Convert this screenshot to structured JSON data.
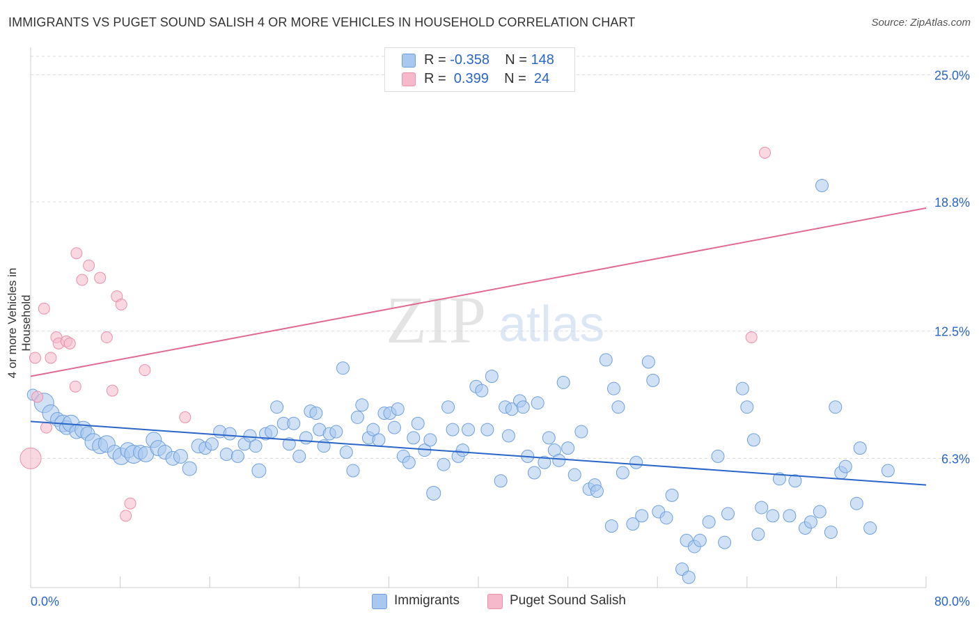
{
  "title": "IMMIGRANTS VS PUGET SOUND SALISH 4 OR MORE VEHICLES IN HOUSEHOLD CORRELATION CHART",
  "source": "Source: ZipAtlas.com",
  "watermark": {
    "zip": "ZIP",
    "atlas": "atlas"
  },
  "legend_top": {
    "rows": [
      {
        "r_label": "R =",
        "r_value": "-0.358",
        "n_label": "N =",
        "n_value": "148",
        "color": "#a9c8ef"
      },
      {
        "r_label": "R =",
        "r_value": " 0.399",
        "n_label": "N =",
        "n_value": " 24",
        "color": "#f6b8cb"
      }
    ]
  },
  "legend_bottom": [
    {
      "label": "Immigrants",
      "color": "#a9c8ef",
      "stroke": "#6f9fdc"
    },
    {
      "label": "Puget Sound Salish",
      "color": "#f6b8cb",
      "stroke": "#e990ab"
    }
  ],
  "chart_data": {
    "type": "scatter",
    "title": "IMMIGRANTS VS PUGET SOUND SALISH 4 OR MORE VEHICLES IN HOUSEHOLD CORRELATION CHART",
    "xlabel": "",
    "ylabel": "4 or more Vehicles in Household",
    "xlim": [
      0,
      80
    ],
    "ylim": [
      0,
      26.2
    ],
    "x_tick_labels": [
      "0.0%",
      "80.0%"
    ],
    "y_ticks": [
      6.3,
      12.5,
      18.8,
      25.0
    ],
    "y_tick_labels": [
      "6.3%",
      "12.5%",
      "18.8%",
      "25.0%"
    ],
    "grid": "horizontal dashed",
    "legend_placement": "top-center and bottom",
    "colors": {
      "blue": "#2a65c8",
      "pink": "#e06a92",
      "blue_fill": "#a9c8ef",
      "pink_fill": "#f6b8cb"
    },
    "series": [
      {
        "name": "Immigrants",
        "trend": {
          "x": [
            0,
            80
          ],
          "y": [
            8.1,
            5.0
          ]
        },
        "points": [
          [
            0.2,
            9.4,
            8
          ],
          [
            1.2,
            9.0,
            14
          ],
          [
            1.8,
            8.5,
            12
          ],
          [
            2.4,
            8.2,
            10
          ],
          [
            2.9,
            8.0,
            12
          ],
          [
            3.2,
            7.8,
            10
          ],
          [
            3.6,
            8.0,
            12
          ],
          [
            4.1,
            7.6,
            10
          ],
          [
            4.7,
            7.7,
            12
          ],
          [
            5.1,
            7.5,
            10
          ],
          [
            5.6,
            7.1,
            12
          ],
          [
            6.2,
            6.9,
            11
          ],
          [
            6.8,
            7.0,
            12
          ],
          [
            7.5,
            6.6,
            10
          ],
          [
            8.1,
            6.4,
            12
          ],
          [
            8.7,
            6.7,
            11
          ],
          [
            9.2,
            6.5,
            13
          ],
          [
            9.8,
            6.6,
            10
          ],
          [
            10.3,
            6.5,
            11
          ],
          [
            11.0,
            7.2,
            11
          ],
          [
            11.4,
            6.8,
            11
          ],
          [
            12.0,
            6.6,
            10
          ],
          [
            12.7,
            6.3,
            10
          ],
          [
            13.4,
            6.4,
            10
          ],
          [
            14.2,
            5.8,
            10
          ],
          [
            15.0,
            6.9,
            10
          ],
          [
            15.6,
            6.8,
            9
          ],
          [
            16.2,
            7.0,
            9
          ],
          [
            16.9,
            7.6,
            9
          ],
          [
            17.5,
            6.5,
            9
          ],
          [
            17.8,
            7.5,
            9
          ],
          [
            18.5,
            6.4,
            9
          ],
          [
            19.1,
            7.0,
            9
          ],
          [
            19.6,
            7.4,
            9
          ],
          [
            20.1,
            6.9,
            9
          ],
          [
            20.4,
            5.7,
            10
          ],
          [
            21.0,
            7.5,
            9
          ],
          [
            21.5,
            7.6,
            9
          ],
          [
            22.0,
            8.8,
            9
          ],
          [
            22.6,
            8.0,
            9
          ],
          [
            23.1,
            7.0,
            9
          ],
          [
            23.5,
            8.0,
            9
          ],
          [
            24.0,
            6.4,
            9
          ],
          [
            24.6,
            7.3,
            9
          ],
          [
            25.0,
            8.6,
            9
          ],
          [
            25.5,
            8.5,
            9
          ],
          [
            25.8,
            7.7,
            9
          ],
          [
            26.2,
            6.9,
            9
          ],
          [
            26.7,
            7.5,
            9
          ],
          [
            27.3,
            7.6,
            9
          ],
          [
            27.9,
            10.7,
            9
          ],
          [
            28.2,
            6.6,
            9
          ],
          [
            28.8,
            5.7,
            9
          ],
          [
            29.2,
            8.3,
            9
          ],
          [
            29.6,
            8.9,
            9
          ],
          [
            30.2,
            7.3,
            9
          ],
          [
            30.6,
            7.7,
            9
          ],
          [
            31.1,
            7.2,
            9
          ],
          [
            31.6,
            8.5,
            9
          ],
          [
            32.1,
            8.5,
            9
          ],
          [
            32.5,
            7.8,
            9
          ],
          [
            32.8,
            8.7,
            9
          ],
          [
            33.3,
            6.4,
            9
          ],
          [
            33.8,
            6.1,
            9
          ],
          [
            34.2,
            7.3,
            9
          ],
          [
            34.6,
            8.0,
            9
          ],
          [
            35.2,
            6.7,
            9
          ],
          [
            35.7,
            7.2,
            9
          ],
          [
            36.0,
            4.6,
            10
          ],
          [
            36.9,
            6.0,
            9
          ],
          [
            37.3,
            8.8,
            9
          ],
          [
            37.7,
            7.7,
            9
          ],
          [
            38.2,
            6.4,
            9
          ],
          [
            38.6,
            6.7,
            9
          ],
          [
            39.1,
            7.7,
            9
          ],
          [
            39.8,
            9.8,
            9
          ],
          [
            40.3,
            9.6,
            9
          ],
          [
            40.8,
            7.7,
            9
          ],
          [
            41.2,
            10.3,
            9
          ],
          [
            42.0,
            5.2,
            9
          ],
          [
            42.4,
            8.8,
            9
          ],
          [
            42.7,
            7.4,
            9
          ],
          [
            43.0,
            8.7,
            9
          ],
          [
            43.7,
            9.1,
            9
          ],
          [
            44.0,
            8.8,
            9
          ],
          [
            44.4,
            6.4,
            9
          ],
          [
            45.0,
            5.6,
            9
          ],
          [
            45.3,
            9.0,
            9
          ],
          [
            45.9,
            6.1,
            9
          ],
          [
            46.3,
            7.3,
            9
          ],
          [
            46.8,
            6.7,
            9
          ],
          [
            47.2,
            6.2,
            9
          ],
          [
            47.6,
            10.0,
            9
          ],
          [
            48.0,
            6.8,
            9
          ],
          [
            48.6,
            5.5,
            9
          ],
          [
            49.2,
            7.6,
            9
          ],
          [
            49.9,
            4.8,
            9
          ],
          [
            50.4,
            5.0,
            9
          ],
          [
            50.6,
            4.7,
            9
          ],
          [
            51.4,
            11.1,
            9
          ],
          [
            51.9,
            3.0,
            9
          ],
          [
            52.1,
            9.7,
            9
          ],
          [
            52.5,
            8.8,
            9
          ],
          [
            52.9,
            5.6,
            9
          ],
          [
            53.8,
            3.1,
            9
          ],
          [
            54.1,
            6.1,
            9
          ],
          [
            54.6,
            3.5,
            9
          ],
          [
            55.2,
            11.0,
            9
          ],
          [
            55.6,
            10.1,
            9
          ],
          [
            56.1,
            3.7,
            9
          ],
          [
            56.8,
            3.4,
            9
          ],
          [
            57.3,
            4.5,
            9
          ],
          [
            58.2,
            0.9,
            9
          ],
          [
            58.6,
            2.3,
            9
          ],
          [
            58.8,
            0.5,
            9
          ],
          [
            59.3,
            2.0,
            9
          ],
          [
            59.8,
            2.3,
            9
          ],
          [
            60.6,
            3.2,
            9
          ],
          [
            61.4,
            6.4,
            9
          ],
          [
            62.0,
            2.2,
            9
          ],
          [
            62.3,
            3.6,
            9
          ],
          [
            63.6,
            9.7,
            9
          ],
          [
            64.0,
            8.8,
            9
          ],
          [
            64.6,
            7.2,
            9
          ],
          [
            65.0,
            2.6,
            9
          ],
          [
            65.3,
            3.9,
            9
          ],
          [
            66.3,
            3.5,
            9
          ],
          [
            66.9,
            5.3,
            9
          ],
          [
            67.8,
            3.5,
            9
          ],
          [
            68.3,
            5.2,
            9
          ],
          [
            69.2,
            2.9,
            9
          ],
          [
            69.7,
            3.2,
            9
          ],
          [
            70.5,
            3.7,
            9
          ],
          [
            71.5,
            2.7,
            9
          ],
          [
            71.9,
            8.8,
            9
          ],
          [
            72.4,
            5.6,
            9
          ],
          [
            72.8,
            5.9,
            9
          ],
          [
            74.1,
            6.8,
            9
          ],
          [
            73.8,
            4.1,
            9
          ],
          [
            75.0,
            2.9,
            9
          ],
          [
            76.6,
            5.7,
            9
          ],
          [
            70.7,
            19.6,
            9
          ]
        ]
      },
      {
        "name": "Puget Sound Salish",
        "trend": {
          "x": [
            0,
            80
          ],
          "y": [
            10.3,
            18.5
          ]
        },
        "points": [
          [
            0.0,
            6.3,
            15
          ],
          [
            0.4,
            11.2,
            8
          ],
          [
            0.6,
            9.3,
            8
          ],
          [
            1.2,
            13.6,
            8
          ],
          [
            1.4,
            7.8,
            8
          ],
          [
            1.8,
            11.2,
            8
          ],
          [
            2.3,
            12.2,
            8
          ],
          [
            2.5,
            11.9,
            8
          ],
          [
            3.2,
            12.0,
            8
          ],
          [
            3.5,
            11.9,
            8
          ],
          [
            4.0,
            9.8,
            8
          ],
          [
            4.1,
            16.3,
            8
          ],
          [
            4.6,
            15.0,
            8
          ],
          [
            5.2,
            15.7,
            8
          ],
          [
            6.2,
            15.1,
            8
          ],
          [
            6.8,
            12.2,
            8
          ],
          [
            7.3,
            9.6,
            8
          ],
          [
            7.7,
            14.2,
            8
          ],
          [
            8.1,
            13.8,
            8
          ],
          [
            8.5,
            3.5,
            8
          ],
          [
            8.9,
            4.1,
            8
          ],
          [
            10.2,
            10.6,
            8
          ],
          [
            13.8,
            8.3,
            8
          ],
          [
            64.4,
            12.2,
            8
          ],
          [
            65.6,
            21.2,
            8
          ]
        ]
      }
    ]
  }
}
